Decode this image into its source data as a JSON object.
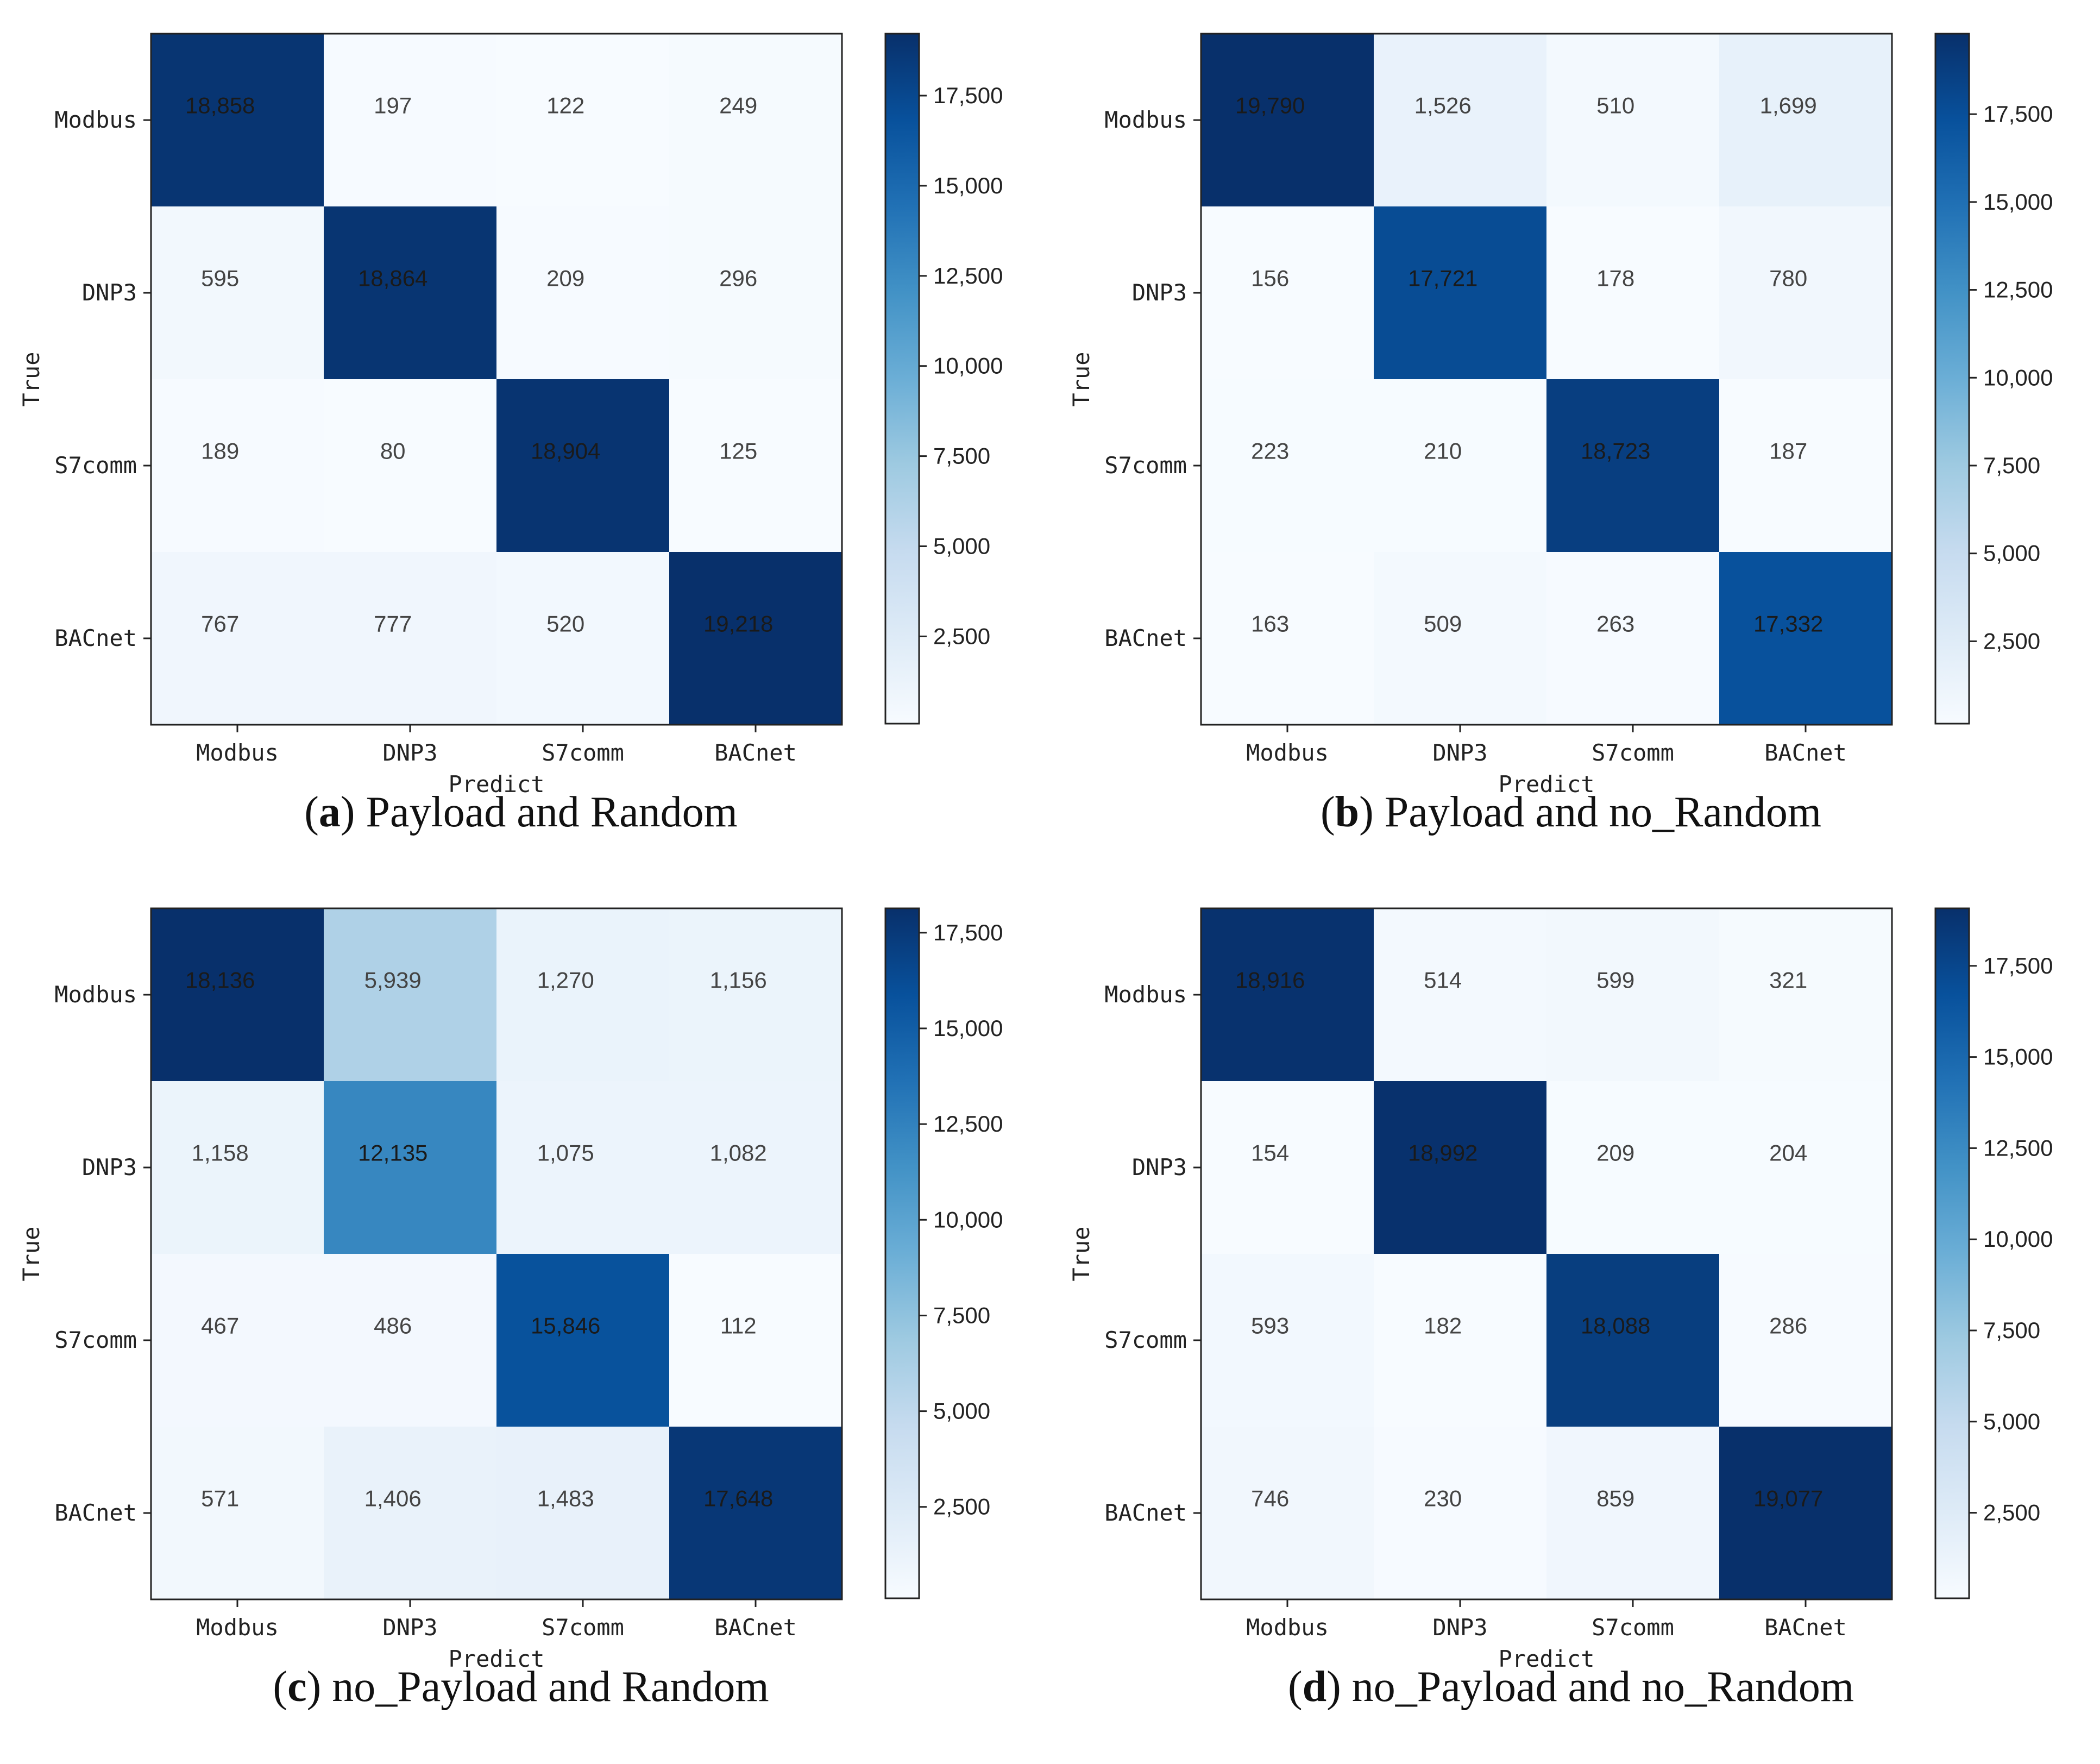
{
  "chart_data": [
    {
      "type": "heatmap",
      "caption_letter": "a",
      "caption_text": "Payload and Random",
      "xlabel": "Predict",
      "ylabel": "True",
      "x_categories": [
        "Modbus",
        "DNP3",
        "S7comm",
        "BACnet"
      ],
      "y_categories": [
        "Modbus",
        "DNP3",
        "S7comm",
        "BACnet"
      ],
      "matrix": [
        [
          18858,
          197,
          122,
          249
        ],
        [
          595,
          18864,
          209,
          296
        ],
        [
          189,
          80,
          18904,
          125
        ],
        [
          767,
          777,
          520,
          19218
        ]
      ],
      "colorbar": {
        "vmin": 80,
        "vmax": 19218,
        "ticks": [
          2500,
          5000,
          7500,
          10000,
          12500,
          15000,
          17500
        ],
        "tick_labels": [
          "2,500",
          "5,000",
          "7,500",
          "10,000",
          "12,500",
          "15,000",
          "17,500"
        ]
      }
    },
    {
      "type": "heatmap",
      "caption_letter": "b",
      "caption_text": "Payload and no_Random",
      "xlabel": "Predict",
      "ylabel": "True",
      "x_categories": [
        "Modbus",
        "DNP3",
        "S7comm",
        "BACnet"
      ],
      "y_categories": [
        "Modbus",
        "DNP3",
        "S7comm",
        "BACnet"
      ],
      "matrix": [
        [
          19790,
          1526,
          510,
          1699
        ],
        [
          156,
          17721,
          178,
          780
        ],
        [
          223,
          210,
          18723,
          187
        ],
        [
          163,
          509,
          263,
          17332
        ]
      ],
      "colorbar": {
        "vmin": 156,
        "vmax": 19790,
        "ticks": [
          2500,
          5000,
          7500,
          10000,
          12500,
          15000,
          17500
        ],
        "tick_labels": [
          "2,500",
          "5,000",
          "7,500",
          "10,000",
          "12,500",
          "15,000",
          "17,500"
        ]
      }
    },
    {
      "type": "heatmap",
      "caption_letter": "c",
      "caption_text": "no_Payload and Random",
      "xlabel": "Predict",
      "ylabel": "True",
      "x_categories": [
        "Modbus",
        "DNP3",
        "S7comm",
        "BACnet"
      ],
      "y_categories": [
        "Modbus",
        "DNP3",
        "S7comm",
        "BACnet"
      ],
      "matrix": [
        [
          18136,
          5939,
          1270,
          1156
        ],
        [
          1158,
          12135,
          1075,
          1082
        ],
        [
          467,
          486,
          15846,
          112
        ],
        [
          571,
          1406,
          1483,
          17648
        ]
      ],
      "colorbar": {
        "vmin": 112,
        "vmax": 18136,
        "ticks": [
          2500,
          5000,
          7500,
          10000,
          12500,
          15000,
          17500
        ],
        "tick_labels": [
          "2,500",
          "5,000",
          "7,500",
          "10,000",
          "12,500",
          "15,000",
          "17,500"
        ]
      }
    },
    {
      "type": "heatmap",
      "caption_letter": "d",
      "caption_text": "no_Payload and no_Random",
      "xlabel": "Predict",
      "ylabel": "True",
      "x_categories": [
        "Modbus",
        "DNP3",
        "S7comm",
        "BACnet"
      ],
      "y_categories": [
        "Modbus",
        "DNP3",
        "S7comm",
        "BACnet"
      ],
      "matrix": [
        [
          18916,
          514,
          599,
          321
        ],
        [
          154,
          18992,
          209,
          204
        ],
        [
          593,
          182,
          18088,
          286
        ],
        [
          746,
          230,
          859,
          19077
        ]
      ],
      "colorbar": {
        "vmin": 154,
        "vmax": 19077,
        "ticks": [
          2500,
          5000,
          7500,
          10000,
          12500,
          15000,
          17500
        ],
        "tick_labels": [
          "2,500",
          "5,000",
          "7,500",
          "10,000",
          "12,500",
          "15,000",
          "17,500"
        ]
      }
    }
  ]
}
